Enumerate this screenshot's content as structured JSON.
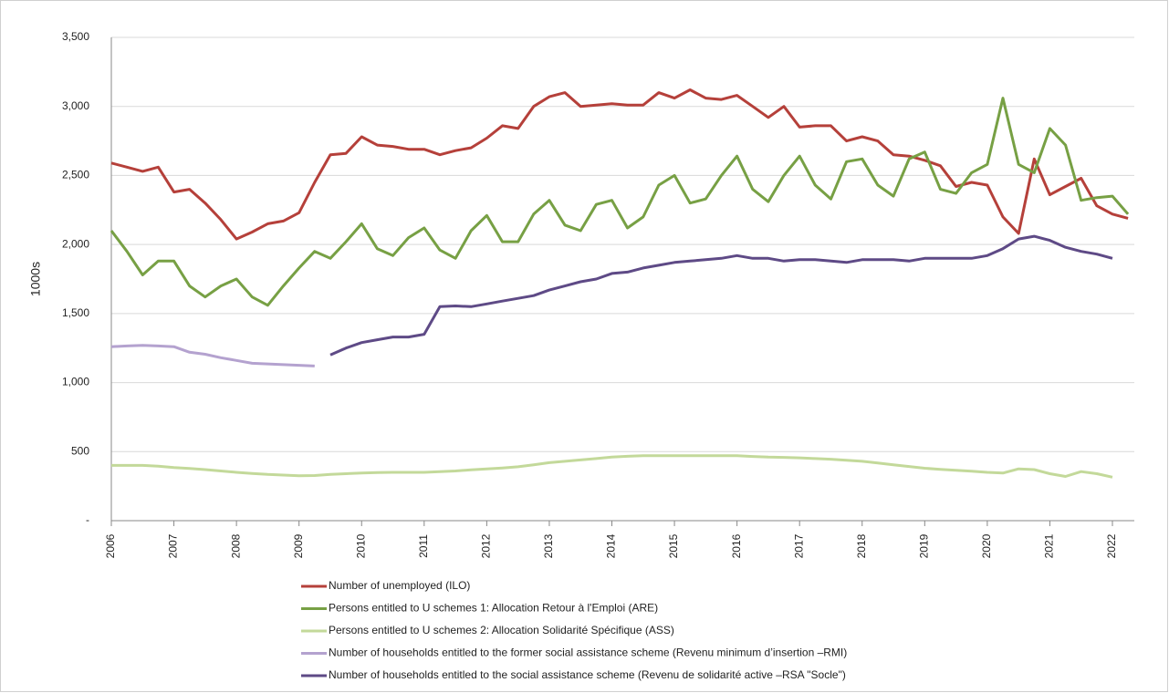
{
  "chart_data": {
    "type": "line",
    "y_label": "1000s",
    "x": [
      2006,
      2006.25,
      2006.5,
      2006.75,
      2007,
      2007.25,
      2007.5,
      2007.75,
      2008,
      2008.25,
      2008.5,
      2008.75,
      2009,
      2009.25,
      2009.5,
      2009.75,
      2010,
      2010.25,
      2010.5,
      2010.75,
      2011,
      2011.25,
      2011.5,
      2011.75,
      2012,
      2012.25,
      2012.5,
      2012.75,
      2013,
      2013.25,
      2013.5,
      2013.75,
      2014,
      2014.25,
      2014.5,
      2014.75,
      2015,
      2015.25,
      2015.5,
      2015.75,
      2016,
      2016.25,
      2016.5,
      2016.75,
      2017,
      2017.25,
      2017.5,
      2017.75,
      2018,
      2018.25,
      2018.5,
      2018.75,
      2019,
      2019.25,
      2019.5,
      2019.75,
      2020,
      2020.25,
      2020.5,
      2020.75,
      2021,
      2021.25,
      2021.5,
      2021.75,
      2022,
      2022.25
    ],
    "series": [
      {
        "name": "Number of unemployed (ILO)",
        "color": "#b5403a",
        "values": [
          2590,
          2560,
          2530,
          2560,
          2380,
          2400,
          2300,
          2180,
          2040,
          2090,
          2150,
          2170,
          2230,
          2450,
          2650,
          2660,
          2780,
          2720,
          2710,
          2690,
          2690,
          2650,
          2680,
          2700,
          2770,
          2860,
          2840,
          3000,
          3070,
          3100,
          3000,
          3010,
          3020,
          3010,
          3010,
          3100,
          3060,
          3120,
          3060,
          3050,
          3080,
          3000,
          2920,
          3000,
          2850,
          2860,
          2860,
          2750,
          2780,
          2750,
          2650,
          2640,
          2610,
          2570,
          2420,
          2450,
          2430,
          2200,
          2080,
          2620,
          2360,
          2420,
          2480,
          2280,
          2220,
          2190
        ]
      },
      {
        "name": "Persons entitled to U schemes 1: Allocation Retour à l'Emploi (ARE)",
        "color": "#77a044",
        "values": [
          2100,
          1950,
          1780,
          1880,
          1880,
          1700,
          1620,
          1700,
          1750,
          1620,
          1560,
          1700,
          1830,
          1950,
          1900,
          2020,
          2150,
          1970,
          1920,
          2050,
          2120,
          1960,
          1900,
          2100,
          2210,
          2020,
          2020,
          2220,
          2320,
          2140,
          2100,
          2290,
          2320,
          2120,
          2200,
          2430,
          2500,
          2300,
          2330,
          2500,
          2640,
          2400,
          2310,
          2500,
          2640,
          2430,
          2330,
          2600,
          2620,
          2430,
          2350,
          2620,
          2670,
          2400,
          2370,
          2520,
          2580,
          3060,
          2580,
          2520,
          2840,
          2720,
          2320,
          2340,
          2350,
          2220
        ]
      },
      {
        "name": "Persons entitled to U schemes 2: Allocation Solidarité Spécifique (ASS)",
        "color": "#c3d99a",
        "values": [
          400,
          400,
          400,
          395,
          385,
          378,
          370,
          360,
          350,
          342,
          335,
          330,
          325,
          327,
          335,
          340,
          345,
          348,
          350,
          350,
          350,
          355,
          360,
          368,
          375,
          382,
          390,
          405,
          420,
          430,
          440,
          450,
          460,
          466,
          470,
          470,
          470,
          470,
          470,
          470,
          470,
          465,
          460,
          458,
          455,
          450,
          445,
          438,
          430,
          418,
          405,
          392,
          380,
          372,
          365,
          358,
          350,
          345,
          375,
          370,
          340,
          320,
          355,
          340,
          315,
          null
        ]
      },
      {
        "name": "Number of households entitled to the former social assistance scheme (Revenu minimum d’insertion –RMI)",
        "color": "#b4a2cf",
        "values": [
          1260,
          1265,
          1270,
          1265,
          1260,
          1220,
          1205,
          1180,
          1160,
          1140,
          1135,
          1130,
          1125,
          1120,
          null,
          null,
          null,
          null,
          null,
          null,
          null,
          null,
          null,
          null,
          null,
          null,
          null,
          null,
          null,
          null,
          null,
          null,
          null,
          null,
          null,
          null,
          null,
          null,
          null,
          null,
          null,
          null,
          null,
          null,
          null,
          null,
          null,
          null,
          null,
          null,
          null,
          null,
          null,
          null,
          null,
          null,
          null,
          null,
          null,
          null,
          null,
          null,
          null,
          null,
          null,
          null
        ]
      },
      {
        "name": "Number of households entitled to the social assistance scheme (Revenu de solidarité active –RSA \"Socle\")",
        "color": "#5e4a86",
        "values": [
          null,
          null,
          null,
          null,
          null,
          null,
          null,
          null,
          null,
          null,
          null,
          null,
          null,
          null,
          1200,
          1250,
          1290,
          1310,
          1330,
          1330,
          1350,
          1550,
          1555,
          1550,
          1570,
          1590,
          1610,
          1630,
          1670,
          1700,
          1730,
          1750,
          1790,
          1800,
          1830,
          1850,
          1870,
          1880,
          1890,
          1900,
          1920,
          1900,
          1900,
          1880,
          1890,
          1890,
          1880,
          1870,
          1890,
          1890,
          1890,
          1880,
          1900,
          1900,
          1900,
          1900,
          1920,
          1970,
          2040,
          2060,
          2030,
          1980,
          1950,
          1930,
          1900,
          null
        ]
      }
    ],
    "xlim": [
      2006,
      2022.35
    ],
    "xticks": [
      2006,
      2007,
      2008,
      2009,
      2010,
      2011,
      2012,
      2013,
      2014,
      2015,
      2016,
      2017,
      2018,
      2019,
      2020,
      2021,
      2022
    ],
    "ylim": [
      0,
      3500
    ],
    "yticks": [
      {
        "value": 0,
        "label": "-"
      },
      500,
      {
        "value": 1000,
        "label": "1,000"
      },
      {
        "value": 1500,
        "label": "1,500"
      },
      {
        "value": 2000,
        "label": "2,000"
      },
      {
        "value": 2500,
        "label": "2,500"
      },
      {
        "value": 3000,
        "label": "3,000"
      },
      {
        "value": 3500,
        "label": "3,500"
      }
    ],
    "grid": true
  }
}
